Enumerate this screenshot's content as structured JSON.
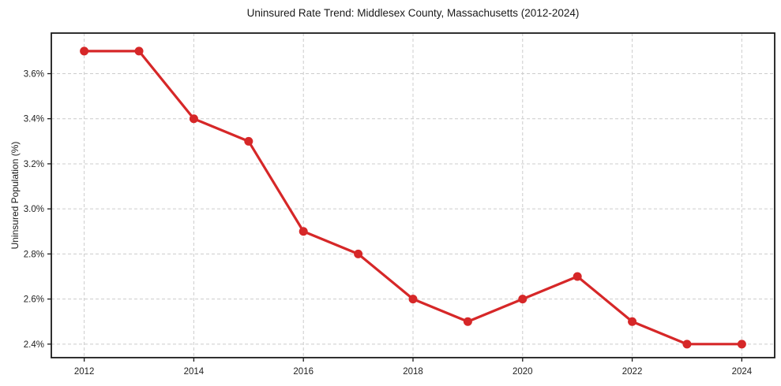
{
  "chart_data": {
    "type": "line",
    "title": "Uninsured Rate Trend: Middlesex County, Massachusetts (2012-2024)",
    "xlabel": "",
    "ylabel": "Uninsured Population (%)",
    "x": [
      2012,
      2013,
      2014,
      2015,
      2016,
      2017,
      2018,
      2019,
      2020,
      2021,
      2022,
      2023,
      2024
    ],
    "values": [
      3.7,
      3.7,
      3.4,
      3.3,
      2.9,
      2.8,
      2.6,
      2.5,
      2.6,
      2.7,
      2.5,
      2.4,
      2.4
    ],
    "xticks": [
      2012,
      2014,
      2016,
      2018,
      2020,
      2022,
      2024
    ],
    "yticks": [
      2.4,
      2.6,
      2.8,
      3.0,
      3.2,
      3.4,
      3.6
    ],
    "ytick_labels": [
      "2.4%",
      "2.6%",
      "2.8%",
      "3.0%",
      "3.2%",
      "3.4%",
      "3.6%"
    ],
    "xlim": [
      2011.4,
      2024.6
    ],
    "ylim": [
      2.34,
      3.78
    ],
    "grid": "dashed",
    "legend_position": "none",
    "line_color": "#d62728",
    "marker": "circle",
    "grid_color": "#cccccc",
    "frame_color": "#1a1a1a",
    "tick_label_color": "#222222",
    "background_color": "#ffffff"
  }
}
